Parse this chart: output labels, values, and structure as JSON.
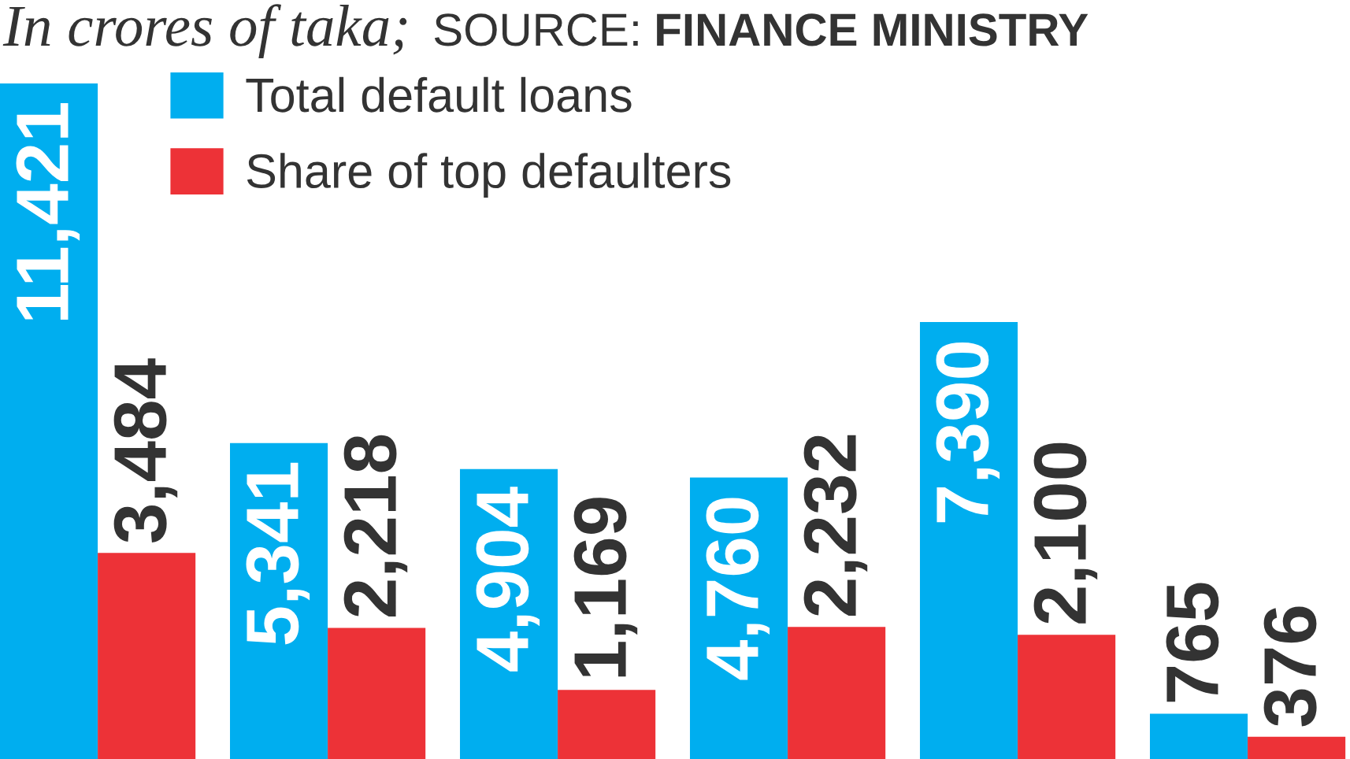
{
  "chart_data": {
    "type": "bar",
    "subtitle": "In crores of taka;",
    "annotations": [
      "SOURCE: FINANCE MINISTRY"
    ],
    "categories": [
      null,
      null,
      null,
      null,
      null,
      null
    ],
    "series": [
      {
        "name": "Total default loans",
        "color": "#00aeef",
        "values": [
          11421,
          5341,
          4904,
          4760,
          7390,
          765
        ],
        "value_labels": [
          "11,421",
          "5,341",
          "4,904",
          "4,760",
          "7,390",
          "765"
        ]
      },
      {
        "name": "Share of top defaulters",
        "color": "#ed3237",
        "values": [
          3484,
          2218,
          1169,
          2232,
          2100,
          376
        ],
        "value_labels": [
          "3,484",
          "2,218",
          "1,169",
          "2,232",
          "2,100",
          "376"
        ]
      }
    ],
    "legend": "top left"
  }
}
